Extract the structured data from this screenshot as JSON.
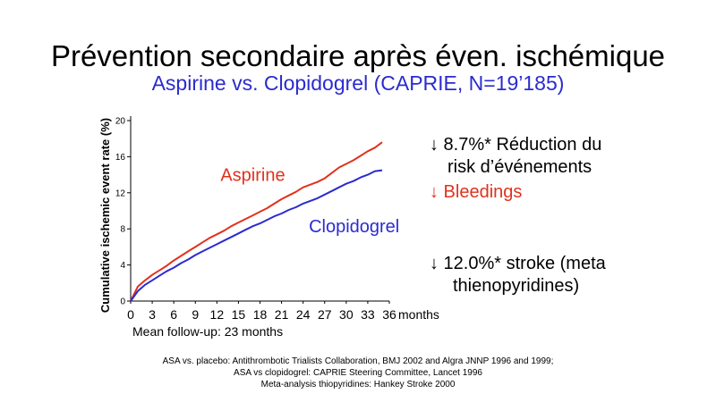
{
  "slide": {
    "title": "Prévention secondaire après éven. ischémique",
    "subtitle": "Aspirine vs. Clopidogrel  (CAPRIE, N=19’185)",
    "follow_up": "Mean follow-up: 23 months",
    "bullets": [
      {
        "line1": "↓ 8.7%*  Réduction du",
        "line2": "risk d’événements"
      },
      {
        "line1": "↓ Bleedings"
      },
      {
        "line1": "↓ 12.0%*  stroke (meta",
        "line2": "thienopyridines)"
      }
    ],
    "references": [
      "ASA vs. placebo: Antithrombotic Trialists Collaboration, BMJ 2002 and Algra JNNP 1996 and 1999;",
      "ASA vs clopidogrel: CAPRIE Steering Committee, Lancet 1996",
      "Meta-analysis thiopyridines: Hankey Stroke 2000"
    ]
  },
  "chart_data": {
    "type": "line",
    "ylabel": "Cumulative ischemic event  rate (%)",
    "xlabel": "",
    "x_unit_label": "months",
    "xlim": [
      0,
      36
    ],
    "ylim": [
      0,
      20
    ],
    "x_ticks": [
      0,
      3,
      6,
      9,
      12,
      15,
      18,
      21,
      24,
      27,
      30,
      33,
      36
    ],
    "y_ticks": [
      0,
      4,
      8,
      12,
      16,
      20
    ],
    "grid": false,
    "series": [
      {
        "name": "Aspirine",
        "color": "#e0321e",
        "x": [
          0,
          1,
          2,
          3,
          4,
          5,
          6,
          7,
          8,
          9,
          10,
          11,
          12,
          13,
          14,
          15,
          16,
          17,
          18,
          19,
          20,
          21,
          22,
          23,
          24,
          25,
          26,
          27,
          28,
          29,
          30,
          31,
          32,
          33,
          34,
          35
        ],
        "y": [
          0,
          1.6,
          2.3,
          2.9,
          3.4,
          3.9,
          4.5,
          5.0,
          5.5,
          6.0,
          6.5,
          7.0,
          7.4,
          7.8,
          8.3,
          8.7,
          9.1,
          9.5,
          9.9,
          10.3,
          10.8,
          11.3,
          11.7,
          12.1,
          12.6,
          12.9,
          13.2,
          13.6,
          14.2,
          14.8,
          15.2,
          15.6,
          16.1,
          16.6,
          17.0,
          17.6
        ]
      },
      {
        "name": "Clopidogrel",
        "color": "#2b2bd0",
        "x": [
          0,
          1,
          2,
          3,
          4,
          5,
          6,
          7,
          8,
          9,
          10,
          11,
          12,
          13,
          14,
          15,
          16,
          17,
          18,
          19,
          20,
          21,
          22,
          23,
          24,
          25,
          26,
          27,
          28,
          29,
          30,
          31,
          32,
          33,
          34,
          35
        ],
        "y": [
          0,
          1.1,
          1.8,
          2.3,
          2.8,
          3.3,
          3.7,
          4.2,
          4.6,
          5.1,
          5.5,
          5.9,
          6.3,
          6.7,
          7.1,
          7.5,
          7.9,
          8.3,
          8.6,
          9.0,
          9.4,
          9.7,
          10.1,
          10.4,
          10.8,
          11.1,
          11.4,
          11.8,
          12.2,
          12.6,
          13.0,
          13.3,
          13.7,
          14.0,
          14.4,
          14.5
        ]
      }
    ]
  }
}
